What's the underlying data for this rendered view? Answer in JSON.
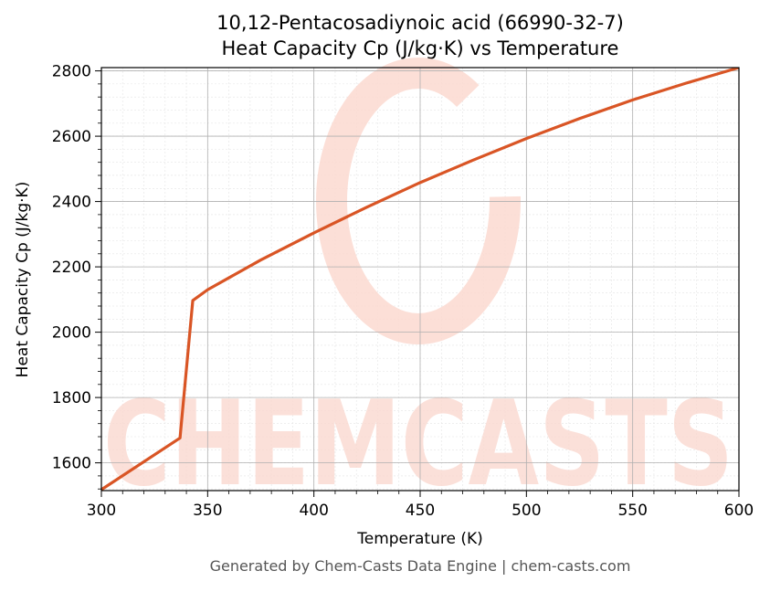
{
  "chart_data": {
    "type": "line",
    "title_line1": "10,12-Pentacosadiynoic acid (66990-32-7)",
    "title_line2": "Heat Capacity Cp (J/kg·K) vs Temperature",
    "xlabel": "Temperature (K)",
    "ylabel": "Heat Capacity Cp (J/kg·K)",
    "xlim": [
      300,
      600
    ],
    "ylim": [
      1515,
      2810
    ],
    "x_ticks": [
      300,
      350,
      400,
      450,
      500,
      550,
      600
    ],
    "y_ticks": [
      1600,
      1800,
      2000,
      2200,
      2400,
      2600,
      2800
    ],
    "grid": true,
    "minor_grid": true,
    "series": [
      {
        "color": "#d95525",
        "x": [
          300,
          337,
          343,
          350,
          375,
          400,
          425,
          450,
          475,
          500,
          525,
          550,
          575,
          600
        ],
        "y": [
          1518,
          1676,
          2097,
          2130,
          2221,
          2304,
          2383,
          2458,
          2527,
          2593,
          2654,
          2711,
          2762,
          2810
        ]
      }
    ]
  },
  "watermark_text": "CHEMCASTS",
  "watermark_color": "#fbd9d0",
  "footer": "Generated by Chem-Casts Data Engine | chem-casts.com"
}
